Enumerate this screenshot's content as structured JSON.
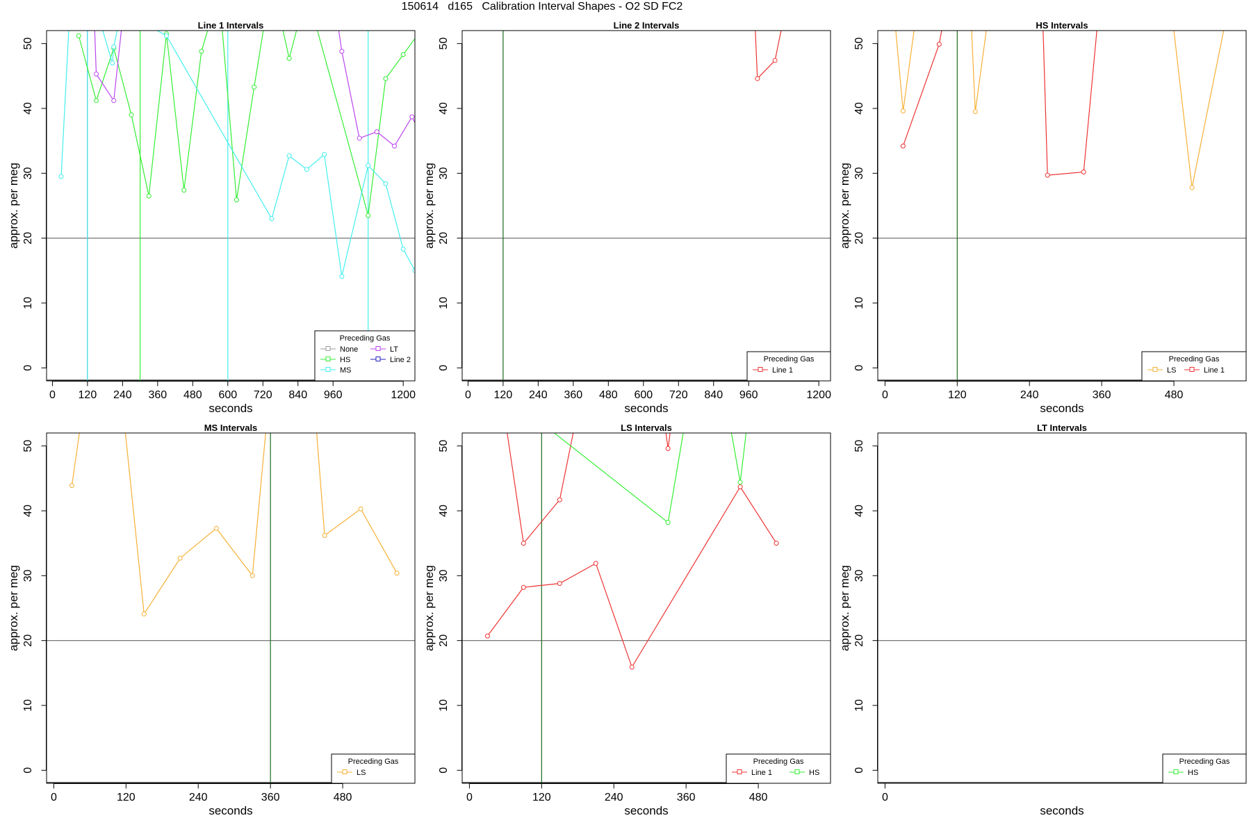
{
  "title": "150614   d165   Calibration Interval Shapes - O2 SD FC2",
  "colors": {
    "None": "#9e9e9e",
    "HS": "#33ee33",
    "MS": "#44eeee",
    "LT": "#bb44ee",
    "Line 2": "#2222bb",
    "Line 1": "#ee3333",
    "LS": "#f6b035",
    "vline_dark": "#1a6a1a"
  },
  "chart_data": [
    {
      "type": "line",
      "title": "Line 1 Intervals",
      "xlabel": "seconds",
      "ylabel": "approx. per meg",
      "xlim": [
        -20,
        1240
      ],
      "ylim": [
        -2,
        52
      ],
      "xticks": [
        0,
        120,
        240,
        360,
        480,
        600,
        720,
        840,
        960,
        1200
      ],
      "yticks": [
        0,
        10,
        20,
        30,
        40,
        50
      ],
      "hline": 20,
      "legend": {
        "title": "Preceding Gas",
        "entries": [
          "None",
          "HS",
          "MS",
          "LT",
          "Line 2"
        ],
        "layout": "two-column",
        "position": "bottom-right"
      },
      "vlines": [
        {
          "x": 120,
          "series": "Line 2"
        },
        {
          "x": 120,
          "series": "MS"
        },
        {
          "x": 300,
          "series": "HS"
        },
        {
          "x": 600,
          "series": "MS"
        },
        {
          "x": 1080,
          "series": "MS"
        }
      ],
      "series": [
        {
          "name": "HS",
          "x": [
            90,
            150,
            210,
            270,
            330,
            390,
            450,
            510,
            570,
            630,
            690,
            750,
            810,
            870,
            1080,
            1140,
            1200,
            1260
          ],
          "y": [
            51.2,
            41.2,
            49.3,
            39.0,
            26.5,
            51.5,
            27.4,
            48.8,
            58,
            25.9,
            43.3,
            60,
            47.7,
            58,
            23.5,
            44.6,
            48.3,
            52
          ]
        },
        {
          "name": "MS",
          "x": [
            30,
            65,
            120,
            205,
            210,
            235,
            240,
            390,
            750,
            810,
            870,
            930,
            990,
            1080,
            1140,
            1200,
            1240
          ],
          "y": [
            29.5,
            60,
            60,
            47.0,
            49.5,
            55,
            55,
            51.2,
            23.0,
            32.7,
            30.6,
            32.9,
            14.1,
            31.2,
            28.4,
            18.3,
            15
          ]
        },
        {
          "name": "LT",
          "x": [
            140,
            150,
            210,
            250,
            960,
            990,
            1050,
            1110,
            1170,
            1230,
            1260
          ],
          "y": [
            58,
            45.3,
            41.2,
            58,
            58,
            48.8,
            35.4,
            36.4,
            34.2,
            38.7,
            36
          ]
        }
      ]
    },
    {
      "type": "line",
      "title": "Line 2 Intervals",
      "xlabel": "seconds",
      "ylabel": "approx. per meg",
      "xlim": [
        -20,
        1240
      ],
      "ylim": [
        -2,
        52
      ],
      "xticks": [
        0,
        120,
        240,
        360,
        480,
        600,
        720,
        840,
        960,
        1200
      ],
      "yticks": [
        0,
        10,
        20,
        30,
        40,
        50
      ],
      "hline": 20,
      "legend": {
        "title": "Preceding Gas",
        "entries": [
          "Line 1"
        ],
        "layout": "row",
        "position": "bottom-right"
      },
      "vlines": [
        {
          "x": 120,
          "series": "vline_dark"
        }
      ],
      "series": [
        {
          "name": "Line 1",
          "x": [
            975,
            990,
            1050,
            1080
          ],
          "y": [
            60,
            44.6,
            47.4,
            54
          ]
        }
      ]
    },
    {
      "type": "line",
      "title": "HS Intervals",
      "xlabel": "seconds",
      "ylabel": "approx. per meg",
      "xlim": [
        -12,
        600
      ],
      "ylim": [
        -2,
        52
      ],
      "xticks": [
        0,
        120,
        240,
        360,
        480
      ],
      "yticks": [
        0,
        10,
        20,
        30,
        40,
        50
      ],
      "hline": 20,
      "legend": {
        "title": "Preceding Gas",
        "entries": [
          "LS",
          "Line 1"
        ],
        "layout": "row",
        "position": "bottom-right"
      },
      "vlines": [
        {
          "x": 120,
          "series": "vline_dark"
        }
      ],
      "series": [
        {
          "name": "LS",
          "x": [
            10,
            30,
            60,
            140,
            150,
            180,
            470,
            510,
            580
          ],
          "y": [
            60,
            39.6,
            60,
            60,
            39.5,
            60,
            60,
            27.8,
            60
          ]
        },
        {
          "name": "Line 1",
          "x": [
            30,
            90,
            110,
            260,
            270,
            330,
            360
          ],
          "y": [
            34.2,
            49.9,
            60,
            60,
            29.7,
            30.2,
            60
          ]
        }
      ]
    },
    {
      "type": "line",
      "title": "MS Intervals",
      "xlabel": "seconds",
      "ylabel": "approx. per meg",
      "xlim": [
        -12,
        600
      ],
      "ylim": [
        -2,
        52
      ],
      "xticks": [
        0,
        120,
        240,
        360,
        480
      ],
      "yticks": [
        0,
        10,
        20,
        30,
        40,
        50
      ],
      "hline": 20,
      "legend": {
        "title": "Preceding Gas",
        "entries": [
          "LS"
        ],
        "layout": "row",
        "position": "bottom-right"
      },
      "vlines": [
        {
          "x": 360,
          "series": "vline_dark"
        }
      ],
      "series": [
        {
          "name": "LS",
          "x": [
            30,
            55,
            110,
            150,
            210,
            270,
            330,
            360,
            430,
            450,
            510,
            570
          ],
          "y": [
            43.9,
            60,
            60,
            24.1,
            32.7,
            37.3,
            30.0,
            60,
            60,
            36.2,
            40.3,
            30.4
          ]
        }
      ]
    },
    {
      "type": "line",
      "title": "LS Intervals",
      "xlabel": "seconds",
      "ylabel": "approx. per meg",
      "xlim": [
        -12,
        600
      ],
      "ylim": [
        -2,
        52
      ],
      "xticks": [
        0,
        120,
        240,
        360,
        480
      ],
      "yticks": [
        0,
        10,
        20,
        30,
        40,
        50
      ],
      "hline": 20,
      "legend": {
        "title": "Preceding Gas",
        "entries": [
          "Line 1",
          "HS"
        ],
        "layout": "row",
        "position": "bottom-right"
      },
      "vlines": [
        {
          "x": 120,
          "series": "vline_dark"
        }
      ],
      "series": [
        {
          "name": "Line 1",
          "x": [
            30,
            90,
            150,
            210,
            270,
            450,
            510
          ],
          "y": [
            20.7,
            28.2,
            28.8,
            31.9,
            15.9,
            43.7,
            35.0
          ]
        },
        {
          "name": "Line 1",
          "x": [
            50,
            90,
            150,
            190
          ],
          "y": [
            60,
            35.0,
            41.7,
            60
          ]
        },
        {
          "name": "Line 1",
          "x": [
            315,
            330,
            345
          ],
          "y": [
            60,
            49.6,
            60
          ]
        },
        {
          "name": "HS",
          "x": [
            100,
            330,
            370,
            420,
            450,
            470
          ],
          "y": [
            55,
            38.2,
            60,
            60,
            44.4,
            60
          ]
        }
      ]
    },
    {
      "type": "line",
      "title": "LT Intervals",
      "xlabel": "seconds",
      "ylabel": "approx. per meg",
      "xlim": [
        -12,
        600
      ],
      "ylim": [
        -2,
        52
      ],
      "xticks": [
        0
      ],
      "yticks": [
        0,
        10,
        20,
        30,
        40,
        50
      ],
      "hline": 20,
      "legend": {
        "title": "Preceding Gas",
        "entries": [
          "HS"
        ],
        "layout": "row",
        "position": "bottom-right"
      },
      "vlines": [],
      "series": []
    }
  ]
}
